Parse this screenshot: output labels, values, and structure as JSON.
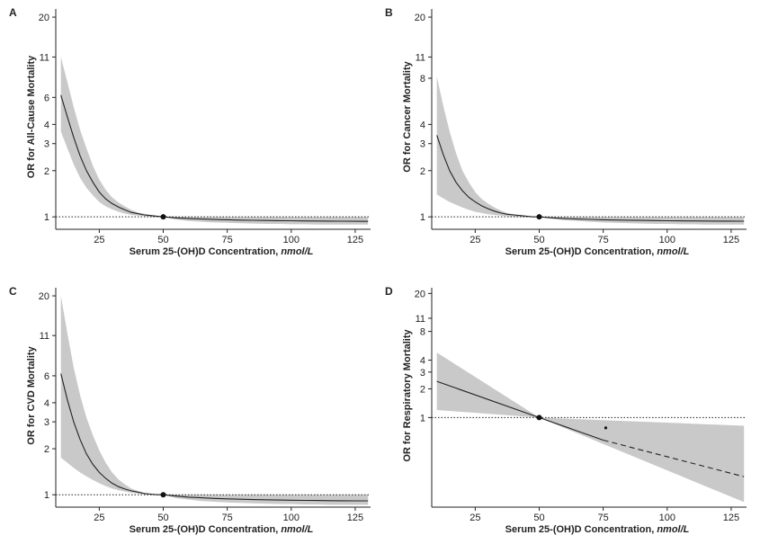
{
  "figure": {
    "x_axis_label_main": "Serum 25-(OH)D Concentration, ",
    "x_axis_label_unit": "nmol/L"
  },
  "chart_data": [
    {
      "panel": "A",
      "type": "area",
      "ylabel": "OR for All-Cause Mortality",
      "xlabel": "Serum 25-(OH)D Concentration, nmol/L",
      "x_ticks": [
        25,
        50,
        75,
        100,
        125
      ],
      "y_ticks": [
        1,
        2,
        3,
        4,
        6,
        11,
        20
      ],
      "xlim": [
        8,
        131
      ],
      "ylim": [
        0.83,
        22
      ],
      "reference_point": [
        50,
        1
      ],
      "reference_line_y": 1,
      "series": [
        {
          "name": "OR",
          "x": [
            10,
            12.5,
            15,
            17.5,
            20,
            22.5,
            25,
            27.5,
            30,
            32.5,
            35,
            37.5,
            40,
            42.5,
            45,
            47.5,
            50,
            55,
            60,
            65,
            70,
            75,
            80,
            85,
            90,
            95,
            100,
            105,
            110,
            115,
            120,
            125,
            130
          ],
          "y": [
            6.2,
            4.5,
            3.3,
            2.5,
            2.0,
            1.68,
            1.45,
            1.31,
            1.22,
            1.16,
            1.11,
            1.07,
            1.05,
            1.03,
            1.02,
            1.01,
            1.0,
            0.985,
            0.975,
            0.968,
            0.962,
            0.957,
            0.953,
            0.95,
            0.947,
            0.945,
            0.943,
            0.941,
            0.94,
            0.938,
            0.937,
            0.936,
            0.935
          ]
        },
        {
          "name": "Lower 95% CI",
          "x": [
            10,
            12.5,
            15,
            17.5,
            20,
            22.5,
            25,
            27.5,
            30,
            32.5,
            35,
            37.5,
            40,
            42.5,
            45,
            47.5,
            50,
            55,
            60,
            65,
            70,
            75,
            80,
            85,
            90,
            95,
            100,
            105,
            110,
            115,
            120,
            125,
            130
          ],
          "y": [
            3.6,
            2.8,
            2.2,
            1.8,
            1.55,
            1.38,
            1.25,
            1.17,
            1.12,
            1.08,
            1.05,
            1.03,
            1.02,
            1.01,
            1.0,
            1.0,
            1.0,
            0.96,
            0.94,
            0.93,
            0.92,
            0.915,
            0.91,
            0.905,
            0.9,
            0.9,
            0.895,
            0.895,
            0.89,
            0.89,
            0.89,
            0.89,
            0.89
          ]
        },
        {
          "name": "Upper 95% CI",
          "x": [
            10,
            12.5,
            15,
            17.5,
            20,
            22.5,
            25,
            27.5,
            30,
            32.5,
            35,
            37.5,
            40,
            42.5,
            45,
            47.5,
            50,
            55,
            60,
            65,
            70,
            75,
            80,
            85,
            90,
            95,
            100,
            105,
            110,
            115,
            120,
            125,
            130
          ],
          "y": [
            11.0,
            7.6,
            5.2,
            3.7,
            2.8,
            2.15,
            1.75,
            1.5,
            1.34,
            1.24,
            1.17,
            1.11,
            1.07,
            1.05,
            1.03,
            1.01,
            1.0,
            1.0,
            1.0,
            1.0,
            1.0,
            1.0,
            1.0,
            1.0,
            1.0,
            1.0,
            1.0,
            1.0,
            1.0,
            1.0,
            1.0,
            1.0,
            1.0
          ]
        }
      ]
    },
    {
      "panel": "B",
      "type": "area",
      "ylabel": "OR for Cancer Mortality",
      "xlabel": "Serum 25-(OH)D Concentration, nmol/L",
      "x_ticks": [
        25,
        50,
        75,
        100,
        125
      ],
      "y_ticks": [
        1,
        2,
        3,
        4,
        8,
        11,
        20
      ],
      "xlim": [
        8,
        131
      ],
      "ylim": [
        0.83,
        22
      ],
      "reference_point": [
        50,
        1
      ],
      "reference_line_y": 1,
      "series": [
        {
          "name": "OR",
          "x": [
            10,
            12.5,
            15,
            17.5,
            20,
            22.5,
            25,
            27.5,
            30,
            32.5,
            35,
            37.5,
            40,
            42.5,
            45,
            47.5,
            50,
            55,
            60,
            65,
            70,
            75,
            80,
            85,
            90,
            95,
            100,
            105,
            110,
            115,
            120,
            125,
            130
          ],
          "y": [
            3.4,
            2.55,
            2.0,
            1.68,
            1.48,
            1.34,
            1.25,
            1.18,
            1.13,
            1.09,
            1.06,
            1.04,
            1.03,
            1.02,
            1.01,
            1.0,
            1.0,
            0.985,
            0.975,
            0.968,
            0.963,
            0.958,
            0.954,
            0.951,
            0.948,
            0.946,
            0.944,
            0.942,
            0.941,
            0.94,
            0.939,
            0.938,
            0.937
          ]
        },
        {
          "name": "Lower 95% CI",
          "x": [
            10,
            12.5,
            15,
            17.5,
            20,
            22.5,
            25,
            27.5,
            30,
            32.5,
            35,
            37.5,
            40,
            42.5,
            45,
            47.5,
            50,
            55,
            60,
            65,
            70,
            75,
            80,
            85,
            90,
            95,
            100,
            105,
            110,
            115,
            120,
            125,
            130
          ],
          "y": [
            1.4,
            1.32,
            1.25,
            1.2,
            1.15,
            1.11,
            1.08,
            1.06,
            1.04,
            1.03,
            1.02,
            1.01,
            1.0,
            1.0,
            1.0,
            1.0,
            1.0,
            0.97,
            0.95,
            0.94,
            0.93,
            0.92,
            0.915,
            0.91,
            0.905,
            0.9,
            0.9,
            0.895,
            0.895,
            0.89,
            0.89,
            0.89,
            0.89
          ]
        },
        {
          "name": "Upper 95% CI",
          "x": [
            10,
            12.5,
            15,
            17.5,
            20,
            22.5,
            25,
            27.5,
            30,
            32.5,
            35,
            37.5,
            40,
            42.5,
            45,
            47.5,
            50,
            55,
            60,
            65,
            70,
            75,
            80,
            85,
            90,
            95,
            100,
            105,
            110,
            115,
            120,
            125,
            130
          ],
          "y": [
            8.2,
            5.3,
            3.6,
            2.6,
            2.0,
            1.68,
            1.45,
            1.31,
            1.22,
            1.15,
            1.1,
            1.06,
            1.04,
            1.02,
            1.01,
            1.0,
            1.0,
            1.0,
            1.0,
            1.0,
            1.0,
            1.0,
            1.0,
            1.0,
            1.0,
            1.0,
            1.0,
            1.0,
            1.0,
            1.0,
            1.0,
            1.0,
            1.0
          ]
        }
      ]
    },
    {
      "panel": "C",
      "type": "area",
      "ylabel": "OR for CVD Mortality",
      "xlabel": "Serum 25-(OH)D Concentration, nmol/L",
      "x_ticks": [
        25,
        50,
        75,
        100,
        125
      ],
      "y_ticks": [
        1,
        2,
        3,
        4,
        6,
        11,
        20
      ],
      "xlim": [
        8,
        131
      ],
      "ylim": [
        0.83,
        22
      ],
      "reference_point": [
        50,
        1
      ],
      "reference_line_y": 1,
      "series": [
        {
          "name": "OR",
          "x": [
            10,
            12.5,
            15,
            17.5,
            20,
            22.5,
            25,
            27.5,
            30,
            32.5,
            35,
            37.5,
            40,
            42.5,
            45,
            47.5,
            50,
            55,
            60,
            65,
            70,
            75,
            80,
            85,
            90,
            95,
            100,
            105,
            110,
            115,
            120,
            125,
            130
          ],
          "y": [
            6.2,
            4.2,
            3.0,
            2.3,
            1.85,
            1.58,
            1.4,
            1.28,
            1.19,
            1.13,
            1.09,
            1.06,
            1.04,
            1.02,
            1.01,
            1.0,
            1.0,
            0.98,
            0.965,
            0.955,
            0.947,
            0.94,
            0.935,
            0.93,
            0.927,
            0.924,
            0.921,
            0.919,
            0.917,
            0.915,
            0.914,
            0.913,
            0.912
          ]
        },
        {
          "name": "Lower 95% CI",
          "x": [
            10,
            12.5,
            15,
            17.5,
            20,
            22.5,
            25,
            27.5,
            30,
            32.5,
            35,
            37.5,
            40,
            42.5,
            45,
            47.5,
            50,
            55,
            60,
            65,
            70,
            75,
            80,
            85,
            90,
            95,
            100,
            105,
            110,
            115,
            120,
            125,
            130
          ],
          "y": [
            1.75,
            1.62,
            1.5,
            1.4,
            1.32,
            1.25,
            1.19,
            1.14,
            1.1,
            1.07,
            1.05,
            1.03,
            1.02,
            1.01,
            1.0,
            1.0,
            1.0,
            0.95,
            0.93,
            0.91,
            0.9,
            0.89,
            0.885,
            0.88,
            0.875,
            0.87,
            0.87,
            0.865,
            0.865,
            0.86,
            0.86,
            0.86,
            0.86
          ]
        },
        {
          "name": "Upper 95% CI",
          "x": [
            10,
            12.5,
            15,
            17.5,
            20,
            22.5,
            25,
            27.5,
            30,
            32.5,
            35,
            37.5,
            40,
            42.5,
            45,
            47.5,
            50,
            55,
            60,
            65,
            70,
            75,
            80,
            85,
            90,
            95,
            100,
            105,
            110,
            115,
            120,
            125,
            130
          ],
          "y": [
            20,
            11.5,
            6.8,
            4.5,
            3.2,
            2.45,
            1.95,
            1.62,
            1.4,
            1.26,
            1.17,
            1.1,
            1.06,
            1.03,
            1.01,
            1.0,
            1.0,
            1.0,
            1.0,
            1.0,
            1.0,
            1.0,
            1.0,
            1.0,
            1.0,
            1.0,
            1.0,
            1.0,
            1.0,
            1.0,
            1.0,
            1.0,
            1.0
          ]
        }
      ]
    },
    {
      "panel": "D",
      "type": "area",
      "ylabel": "OR for Respiratory Mortality",
      "xlabel": "Serum 25-(OH)D Concentration, nmol/L",
      "x_ticks": [
        25,
        50,
        75,
        100,
        125
      ],
      "y_ticks": [
        1,
        2,
        3,
        4,
        8,
        11,
        20
      ],
      "xlim": [
        8,
        131
      ],
      "ylim": [
        0.115,
        22
      ],
      "reference_point": [
        50,
        1
      ],
      "reference_line_y": 1,
      "extra_point": [
        76,
        0.78
      ],
      "series": [
        {
          "name": "OR",
          "style": "solid",
          "x": [
            10,
            50,
            75
          ],
          "y": [
            2.4,
            1.0,
            0.58
          ]
        },
        {
          "name": "OR (extrapolated)",
          "style": "dashed",
          "x": [
            75,
            130
          ],
          "y": [
            0.58,
            0.24
          ]
        },
        {
          "name": "Lower 95% CI",
          "x": [
            10,
            50,
            130
          ],
          "y": [
            1.2,
            1.0,
            0.13
          ]
        },
        {
          "name": "Upper 95% CI",
          "x": [
            10,
            50,
            130
          ],
          "y": [
            4.8,
            1.0,
            0.82
          ]
        }
      ]
    }
  ]
}
